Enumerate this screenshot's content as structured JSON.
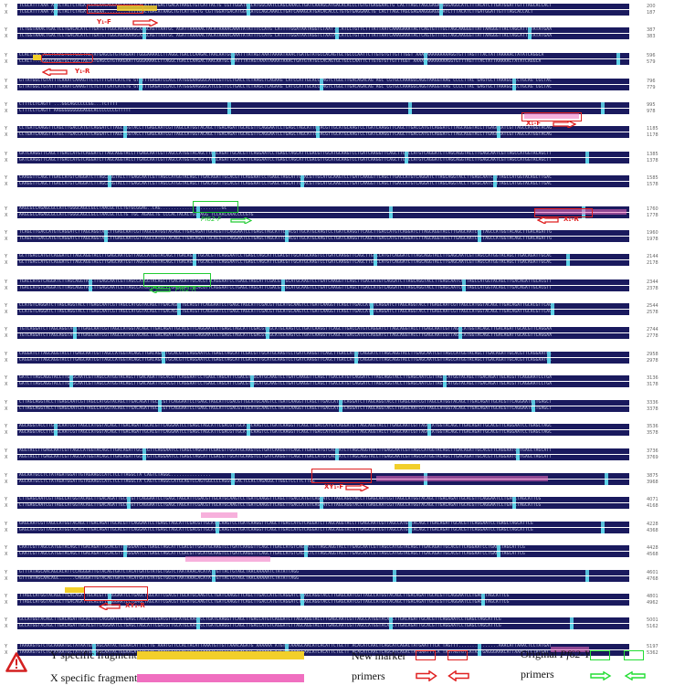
{
  "figure": {
    "type": "pairwise sequence alignment",
    "row_labels": [
      "Y",
      "X"
    ]
  },
  "blocks": [
    {
      "y_end": "200",
      "x_end": "187"
    },
    {
      "y_end": "387",
      "x_end": "383"
    },
    {
      "y_end": "596",
      "x_end": "579"
    },
    {
      "y_end": "796",
      "x_end": "779"
    },
    {
      "y_end": "995",
      "x_end": "978"
    },
    {
      "y_end": "1185",
      "x_end": "1178"
    },
    {
      "y_end": "1385",
      "x_end": "1378"
    },
    {
      "y_end": "1585",
      "x_end": "1578"
    },
    {
      "y_end": "1760",
      "x_end": "1778"
    },
    {
      "y_end": "1960",
      "x_end": "1978"
    },
    {
      "y_end": "2144",
      "x_end": "2178"
    },
    {
      "y_end": "2344",
      "x_end": "2378"
    },
    {
      "y_end": "2544",
      "x_end": "2578"
    },
    {
      "y_end": "2744",
      "x_end": "2778"
    },
    {
      "y_end": "2958",
      "x_end": "2978"
    },
    {
      "y_end": "3136",
      "x_end": "3178"
    },
    {
      "y_end": "3336",
      "x_end": "3378"
    },
    {
      "y_end": "3536",
      "x_end": "3578"
    },
    {
      "y_end": "3736",
      "x_end": "3769"
    },
    {
      "y_end": "3875",
      "x_end": "3968"
    },
    {
      "y_end": "4071",
      "x_end": "4168"
    },
    {
      "y_end": "4228",
      "x_end": "4368"
    },
    {
      "y_end": "4428",
      "x_end": "4568"
    },
    {
      "y_end": "4601",
      "x_end": "4768"
    },
    {
      "y_end": "4801",
      "x_end": "4962"
    },
    {
      "y_end": "5001",
      "x_end": "5162"
    },
    {
      "y_end": "5197",
      "x_end": "5362"
    }
  ],
  "sequence_excerpts": {
    "b0_y": "TCGCATTTAAA ATTCTACTCTAGATGCAGAACAGGAACATTGTGACATTTTGACTGACATAAGCTGTCATTACTG CGTTGGATGACATGGCAATCCAGCAAACCTGATCAAAGCATGACACACCCTGTGTGAGGAACTG CACTTAGCTAGCGAGAAGGGAGGCATCTTTACATCTTGATGGATTGTTTAGCACCACT",
    "b0_x": "TCGCATTTAAA ATTCTACTCTAGATGCAGAA.........TTTTGACTGACATAAGCTGTCATTACTG CGTTGGATGACATGGCAATCCAGCAAACCTGATCAAAGCATGACACACCCTGTGTGAGGAACTG CACTTAGCTAGCGAGAAGGGAGGCATCTTTACATCTTGATGGATTGTTTAGCACCACT",
    "b1_y": "TCTGGTAAACTGACTCCTGACACATCTTGATCTTGGCAGAAAAGCAAACAGTTAATGC AGATTAAAAACTACATAAAACAAATATATTTCCATG CATTTTGGATAATAGGTCTAAT...ATCCTGTTCTTTATTAATCAAAGAAATACTCAGTGTTTGCTAGCAAGGGTTATTAAGGGTTACTAGCATTCTATATGAA",
    "b1_x": "TCTGGTAAACTGACTCCTGACACATCTTGATCTTGGCAGAAAAGCAAACAGTTAATGC AGATTAAAAACTACATAAAACAAATATATTTCCATG CATTTTGGATAATAGGTCTAATAGCATCCTGTTCTTTATTAATCAAAGAAATACTCAGTGTTTGCTAGCAAGGGTTATTAAGGGTTACTAGCATTCTATATGAA",
    "b2_y": "CCACTGAG AGGTCAAGTGCTGGCTAGTATGAGCGTGTAAGAATTGGGAAAACCTTAGGCTGACCCAAGACTAACAATGCTAATTTATAGTAAATAAAATAAACTGATGTATGCCACAGTGCTGCCCAATTCTTGTGTGTTGTTTGGT AAAAAAAAAAAAAGGTGTTTAGTTTACTATTAAAAACTATATCAGGCA",
    "b2_x": "CCACT...AGGTCAAGTGCTGGCTAGTATGAGCGTGTAAGAATTGGGAAAACCTTAGGCTGACCCAAGACTAACAATGCTAATTTATAGTAAATAAAATAAACTGATGTATGCCACAGTGCTGCCCAATTCTTGTGTGTTGTTTGGT AAAAAAAAAAAAAGGTGTTTAGTTTACTATTAAAAACTATATCAGGCA",
    "b3_y": "GTTATGGCTGTATTTCAAATCAAAGTTCTCTTTCATCATCTG GTGTTTGAGATCCACCTATGGGAAGGGCATCCGTTCCTGACCTCTAAGCTCAGAAG CATCCATTGCACCAAGTCTGGCTTGACAGACAG AGC CGTGCCAAAGGCAGGTAAGGTAAG CCCCTTAC GAGTGCTTAAAGCACCTGCAG CGCTAC",
    "b3_x": "GTTATGGCTGTATTTCAAATCAAAGTTCTCTTTCATCATCTG GTGTTTGAGATCCACCTATGGGAAGGGCATCCGTTCCTGACCTCTAAGCTCAGAAG CATCCATTGCACCAAGTCTGGCTTGACAGACAG AGC CGTGCCAAAGGCAGGTAAGGTAAG CCCCTTAC GAGTGCTTAAAGCACCTGCAG CGCTAC",
    "b4_y": "CTTTCCTCAGTT ...GGCAGCCCCCGG...TCTTTT",
    "b4_x": "CTTTCCTCAGTT AAGGGGGGGGGAGGCACCCCCCCGTTTTT",
    "b8_y": "AAGCGCCAGAGCGCCATCTGGGCAGCCGCCTAACGCTCCTGTGCGGAG..CAG.......................GC",
    "b8_x": "AAGCGCCAGAGCGCCATCTGGGCAGCCGCCTAACGCTCCTG TGC AGAGCTG CCCACTACACTGGCAGG TCCAACAAACCCCGTG",
    "b19_y": "AGCAATGCCTCTATAGATGGATTGTAGAAGCCATCTCCTTAGGCTA CAGTCTAGGC...............",
    "b19_x": "AGCAATGCCTCTATAGATGGATTGTAGAAGCCATCTCCTTAGGCTA CAGTCTAGGCCATGCAGTCCAGTGGCCCCAGGCTCACTCCACTAGAGGCTTGGCTCCTTCTTGG",
    "b23_y": "GTTTATAGCAACAGCACATTCCAGGGATTGTACAGTGATCTACATGATGTATGCTGGTCTAATAAACACATATTGTTACTGTAGCTAACAAAAATCTATATTAGG",
    "b23_x": "GTTTATAGCAACAGC......CAGGGATTGTACAGTGATCTACATGATGTATGCTGGTCTAATAAACACATATTGTTACTGTAGCTAACAAAAATCTATATTAGG",
    "b26_y": "TAAAAGTGTCTGCAAAATGCTATAATGCGAGCAATACTGGAACATTTCTTG AAATGTTCCACTACATTAAATGTTGTTAAACAGATG AAAAAA ATGTTTAAAGCAACATCACATTCTGCTT ACACATCAACTCAGCATCAGACTATGAATTTCA TAGTTT...............AAACATTAAACTCCTATGAT",
    "b26_x": "TAAAAGTGTCTGCAAAATGCTATAATGCGAGCAATACTGGAACATTTCTTG AAATGTTCCACTACATTAAATGTTGTTAAACAGATG AAAAAA ATGTTTAAAGCAACATCACATTCTGCTT ACACATCAACTCAGCATCAGACTATGAATTTCA TAGTAGTGTCATAATGAGGGAAACATTAAACTCCTATGAT"
  },
  "primer_labels": {
    "y1_f": "Y₁-F",
    "y1_r": "Y₁-R",
    "x1_f": "X₁-F",
    "x1_r": "X₁-R",
    "pf62_f": "Pf62-F",
    "pf62_r": "Pf62-R",
    "xy1_f": "XY₁-F",
    "xy1_r": "XY₁-R"
  },
  "legend": {
    "y_specific": "Y specific fragments",
    "x_specific": "X specific fragments",
    "new_marker_line1": "New marker",
    "new_marker_line2": "primers",
    "original_line1": "Original ",
    "original_italic": "Pf62-Y",
    "original_line2": "primers",
    "icon": "warning-triangle-icon"
  },
  "colors": {
    "alignment_bg": "#1a1a5e",
    "mismatch": "#5fd3e8",
    "y_specific": "#f2cf2a",
    "x_specific": "#f06fc0",
    "new_primer": "#e02020",
    "original_primer": "#22cc33",
    "gap_dots": "#8888aa"
  }
}
